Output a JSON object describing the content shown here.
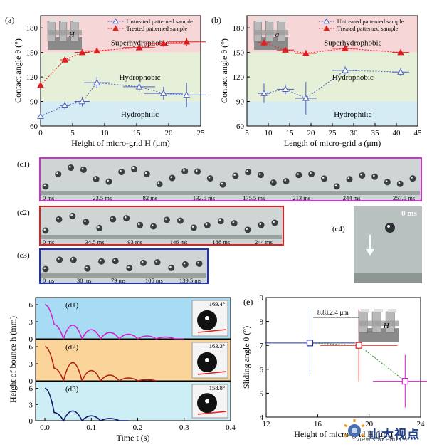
{
  "chart_data": [
    {
      "panel": "(a)",
      "type": "scatter",
      "xlabel": "Height of micro-grid H (μm)",
      "ylabel": "Contact angle θ (°)",
      "xlim": [
        0,
        25
      ],
      "ylim": [
        60,
        195
      ],
      "xticks": [
        "0",
        "5",
        "10",
        "15",
        "20",
        "25"
      ],
      "yticks": [
        "60",
        "90",
        "120",
        "150",
        "180"
      ],
      "legend": [
        "Untreated patterned sample",
        "Treated patterned sample"
      ],
      "legend_position": "top-right",
      "regions": [
        {
          "label": "Superhydrophobic",
          "from": 150,
          "to": 195,
          "color": "#f6d6d6"
        },
        {
          "label": "Hydrophobic",
          "from": 90,
          "to": 150,
          "color": "#e6efd8"
        },
        {
          "label": "Hydrophilic",
          "from": 60,
          "to": 90,
          "color": "#d6ecf4"
        }
      ],
      "inset_label": "H",
      "series": [
        {
          "name": "Untreated patterned sample",
          "color": "#4a5fc1",
          "marker": "open-triangle",
          "points": [
            {
              "x": 0,
              "y": 72,
              "xerr": 0,
              "yerr": 4
            },
            {
              "x": 3.8,
              "y": 85,
              "xerr": 0.8,
              "yerr": 5
            },
            {
              "x": 6.5,
              "y": 90,
              "xerr": 1.2,
              "yerr": 6
            },
            {
              "x": 8.8,
              "y": 113,
              "xerr": 2,
              "yerr": 7
            },
            {
              "x": 15.4,
              "y": 108,
              "xerr": 2.5,
              "yerr": 6
            },
            {
              "x": 19.2,
              "y": 100,
              "xerr": 3,
              "yerr": 8
            },
            {
              "x": 22.8,
              "y": 98,
              "xerr": 3,
              "yerr": 15
            }
          ]
        },
        {
          "name": "Treated patterned sample",
          "color": "#e02020",
          "marker": "filled-triangle",
          "points": [
            {
              "x": 0,
              "y": 110,
              "xerr": 0,
              "yerr": 2
            },
            {
              "x": 3.8,
              "y": 141,
              "xerr": 0.8,
              "yerr": 4
            },
            {
              "x": 6.5,
              "y": 150,
              "xerr": 1.2,
              "yerr": 3
            },
            {
              "x": 8.8,
              "y": 152,
              "xerr": 2,
              "yerr": 3
            },
            {
              "x": 15.4,
              "y": 156,
              "xerr": 2.5,
              "yerr": 3
            },
            {
              "x": 19.2,
              "y": 161,
              "xerr": 3,
              "yerr": 4
            },
            {
              "x": 22.8,
              "y": 163,
              "xerr": 3,
              "yerr": 5
            }
          ]
        }
      ]
    },
    {
      "panel": "(b)",
      "type": "scatter",
      "xlabel": "Length of micro-grid a (μm)",
      "ylabel": "Contact angle θ (°)",
      "xlim": [
        5,
        45
      ],
      "ylim": [
        60,
        195
      ],
      "xticks": [
        "5",
        "10",
        "15",
        "20",
        "25",
        "30",
        "35",
        "40",
        "45"
      ],
      "yticks": [
        "60",
        "90",
        "120",
        "150",
        "180"
      ],
      "legend": [
        "Untreated patterned sample",
        "Treated patterned sample"
      ],
      "legend_position": "top-right",
      "regions": [
        {
          "label": "Superhydrophobic",
          "from": 150,
          "to": 195,
          "color": "#f6d6d6"
        },
        {
          "label": "Hydrophobic",
          "from": 90,
          "to": 150,
          "color": "#e6efd8"
        },
        {
          "label": "Hydrophilic",
          "from": 60,
          "to": 90,
          "color": "#d6ecf4"
        }
      ],
      "inset_label": "a",
      "series": [
        {
          "name": "Untreated patterned sample",
          "color": "#4a5fc1",
          "marker": "open-triangle",
          "points": [
            {
              "x": 9,
              "y": 100,
              "xerr": 1.5,
              "yerr": 12
            },
            {
              "x": 14,
              "y": 105,
              "xerr": 2,
              "yerr": 6
            },
            {
              "x": 18.8,
              "y": 94,
              "xerr": 2.5,
              "yerr": 20
            },
            {
              "x": 28,
              "y": 128,
              "xerr": 3,
              "yerr": 5
            },
            {
              "x": 41,
              "y": 126,
              "xerr": 2,
              "yerr": 5
            }
          ]
        },
        {
          "name": "Treated patterned sample",
          "color": "#e02020",
          "marker": "filled-triangle",
          "points": [
            {
              "x": 9,
              "y": 162,
              "xerr": 1.5,
              "yerr": 4
            },
            {
              "x": 14,
              "y": 153,
              "xerr": 2,
              "yerr": 2
            },
            {
              "x": 18.8,
              "y": 149,
              "xerr": 2.5,
              "yerr": 2
            },
            {
              "x": 28,
              "y": 155,
              "xerr": 3,
              "yerr": 3
            },
            {
              "x": 41,
              "y": 150,
              "xerr": 2,
              "yerr": 2
            }
          ]
        }
      ]
    },
    {
      "panel": "(d)",
      "type": "line",
      "xlabel": "Time t (s)",
      "ylabel": "Height of bounce h (mm)",
      "xlim": [
        -0.02,
        0.4
      ],
      "xticks": [
        "0.0",
        "0.1",
        "0.2",
        "0.3",
        "0.4"
      ],
      "subplots": [
        {
          "label": "(d1)",
          "angle_label": "169.4°",
          "color": "#d020c8",
          "bg": "#a8dcf4",
          "ylim": [
            0,
            7
          ],
          "yticks": [
            "0",
            "3",
            "6"
          ],
          "x": [
            0,
            0.02,
            0.04,
            0.06,
            0.08,
            0.1,
            0.12,
            0.14,
            0.16,
            0.18,
            0.2,
            0.22,
            0.24,
            0.26,
            0.28,
            0.3
          ],
          "y": [
            6,
            2.5,
            0,
            2.4,
            0,
            1.6,
            0,
            1.1,
            0,
            0.8,
            0,
            0.5,
            0,
            0.3,
            0,
            0
          ]
        },
        {
          "label": "(d2)",
          "angle_label": "163.3°",
          "color": "#b02018",
          "bg": "#fbd49a",
          "ylim": [
            0,
            7
          ],
          "yticks": [
            "0",
            "3",
            "6"
          ],
          "x": [
            0,
            0.02,
            0.04,
            0.06,
            0.08,
            0.1,
            0.12,
            0.14,
            0.16,
            0.18,
            0.2,
            0.22,
            0.24
          ],
          "y": [
            6,
            2.2,
            0,
            3.2,
            0,
            1.8,
            0,
            1.0,
            0,
            0.5,
            0,
            0.2,
            0
          ]
        },
        {
          "label": "(d3)",
          "angle_label": "158.8°",
          "color": "#10186a",
          "bg": "#cdeef4",
          "ylim": [
            0,
            7
          ],
          "yticks": [
            "0",
            "3",
            "6"
          ],
          "x": [
            0,
            0.02,
            0.04,
            0.06,
            0.08,
            0.1,
            0.12,
            0.14,
            0.16,
            0.18
          ],
          "y": [
            6,
            1.5,
            0,
            1.8,
            0,
            0.9,
            0,
            0.4,
            0,
            0
          ]
        }
      ]
    },
    {
      "panel": "(e)",
      "type": "scatter",
      "xlabel": "Height of micro-grid H (μm)",
      "ylabel": "Sliding angle θ (°)",
      "xlim": [
        12,
        24
      ],
      "ylim": [
        4,
        9
      ],
      "xticks": [
        "12",
        "16",
        "20",
        "24"
      ],
      "yticks": [
        "4",
        "5",
        "6",
        "7",
        "8",
        "9"
      ],
      "annotation": "8.8±2.4 μm",
      "inset_label": "H",
      "points": [
        {
          "x": 15.4,
          "y": 7.1,
          "xerr": 3.5,
          "yerr": 1.3,
          "color": "#2030a0"
        },
        {
          "x": 19.2,
          "y": 7.0,
          "xerr": 3.0,
          "yerr": 1.5,
          "color": "#e02020"
        },
        {
          "x": 22.8,
          "y": 5.5,
          "xerr": 2.5,
          "yerr": 1.1,
          "color": "#d020c8"
        }
      ]
    }
  ],
  "photos": {
    "c1": {
      "label": "(c1)",
      "frame_color": "#d030d0",
      "times": [
        "0 ms",
        "23.5 ms",
        "82 ms",
        "132.5 ms",
        "175.5 ms",
        "213 ms",
        "244 ms",
        "257.5 ms"
      ]
    },
    "c2": {
      "label": "(c2)",
      "frame_color": "#e02020",
      "times": [
        "0 ms",
        "34.5 ms",
        "93 ms",
        "146 ms",
        "188 ms",
        "244 ms"
      ]
    },
    "c3": {
      "label": "(c3)",
      "frame_color": "#2030c0",
      "times": [
        "0 ms",
        "30 ms",
        "79 ms",
        "105 ms",
        "139.5 ms"
      ]
    },
    "c4": {
      "label": "(c4)",
      "time": "0 ms"
    }
  },
  "watermark": {
    "brand": "山大视点",
    "url": "view.sdu.edu.cn"
  }
}
